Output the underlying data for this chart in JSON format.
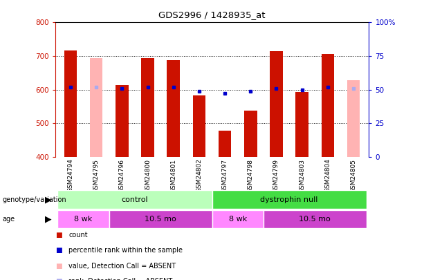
{
  "title": "GDS2996 / 1428935_at",
  "samples": [
    "GSM24794",
    "GSM24795",
    "GSM24796",
    "GSM24800",
    "GSM24801",
    "GSM24802",
    "GSM24797",
    "GSM24798",
    "GSM24799",
    "GSM24803",
    "GSM24804",
    "GSM24805"
  ],
  "count": [
    716,
    null,
    614,
    693,
    688,
    582,
    477,
    537,
    714,
    592,
    706,
    null
  ],
  "rank_pct": [
    52,
    null,
    51,
    52,
    52,
    49,
    47,
    49,
    51,
    50,
    52,
    null
  ],
  "absent_value": [
    null,
    693,
    null,
    null,
    null,
    null,
    null,
    null,
    null,
    null,
    null,
    628
  ],
  "absent_rank_pct": [
    null,
    52,
    null,
    null,
    null,
    null,
    null,
    null,
    null,
    null,
    null,
    51
  ],
  "ylim_left": [
    400,
    800
  ],
  "ylim_right": [
    0,
    100
  ],
  "yticks_left": [
    400,
    500,
    600,
    700,
    800
  ],
  "yticks_right": [
    0,
    25,
    50,
    75,
    100
  ],
  "bar_width": 0.5,
  "bar_color_present": "#cc1100",
  "bar_color_absent": "#ffb3b3",
  "dot_color_present": "#0000cc",
  "dot_color_absent": "#aaaaee",
  "genotype_groups": [
    {
      "label": "control",
      "start": 0,
      "end": 5,
      "color": "#bbffbb"
    },
    {
      "label": "dystrophin null",
      "start": 6,
      "end": 11,
      "color": "#44dd44"
    }
  ],
  "age_groups": [
    {
      "label": "8 wk",
      "start": 0,
      "end": 1,
      "color": "#ff88ff"
    },
    {
      "label": "10.5 mo",
      "start": 2,
      "end": 5,
      "color": "#cc44cc"
    },
    {
      "label": "8 wk",
      "start": 6,
      "end": 7,
      "color": "#ff88ff"
    },
    {
      "label": "10.5 mo",
      "start": 8,
      "end": 11,
      "color": "#cc44cc"
    }
  ],
  "genotype_label": "genotype/variation",
  "age_label": "age",
  "legend_items": [
    {
      "label": "count",
      "color": "#cc1100"
    },
    {
      "label": "percentile rank within the sample",
      "color": "#0000cc"
    },
    {
      "label": "value, Detection Call = ABSENT",
      "color": "#ffb3b3"
    },
    {
      "label": "rank, Detection Call = ABSENT",
      "color": "#aaaaee"
    }
  ],
  "bg_color": "#ffffff",
  "left_axis_color": "#cc1100",
  "right_axis_color": "#0000cc",
  "bar_base": 400,
  "grid_yticks": [
    500,
    600,
    700
  ]
}
